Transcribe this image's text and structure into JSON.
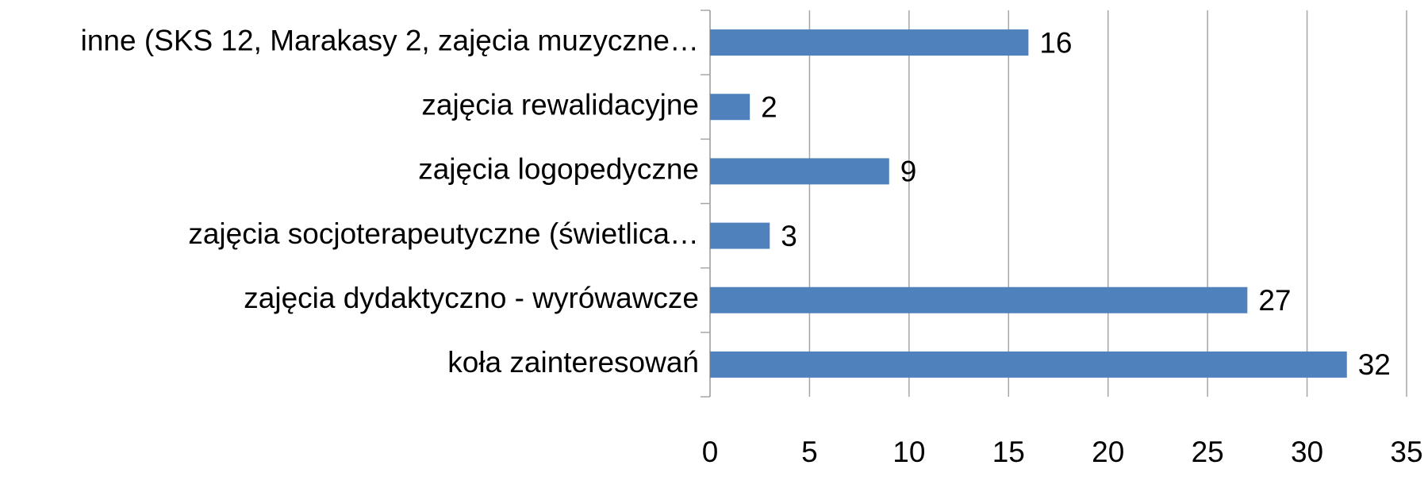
{
  "chart_data": {
    "type": "barh",
    "categories": [
      "inne (SKS 12, Marakasy 2, zajęcia muzyczne…",
      "zajęcia rewalidacyjne",
      "zajęcia logopedyczne",
      "zajęcia socjoterapeutyczne (świetlica…",
      "zajęcia dydaktyczno - wyrówawcze",
      "koła zainteresowań"
    ],
    "values": [
      16,
      2,
      9,
      3,
      27,
      32
    ],
    "color": "#4f81bd",
    "xlim": [
      0,
      35
    ],
    "xticks": [
      0,
      5,
      10,
      15,
      20,
      25,
      30,
      35
    ],
    "grid": true
  }
}
